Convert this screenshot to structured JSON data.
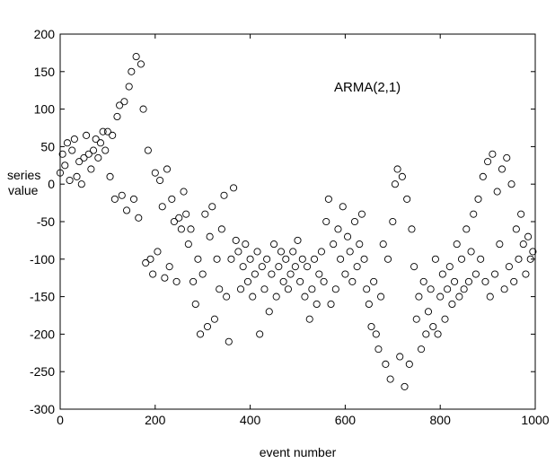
{
  "chart_data": {
    "type": "scatter",
    "title": "",
    "annotation": "ARMA(2,1)",
    "xlabel": "event number",
    "ylabel_lines": [
      "series",
      "value"
    ],
    "xlim": [
      0,
      1000
    ],
    "ylim": [
      -300,
      200
    ],
    "xticks": [
      0,
      200,
      400,
      600,
      800,
      1000
    ],
    "yticks": [
      -300,
      -250,
      -200,
      -150,
      -100,
      -50,
      0,
      50,
      100,
      150,
      200
    ],
    "grid": false,
    "marker": "open-circle",
    "series": [
      {
        "values": [
          [
            0,
            15
          ],
          [
            5,
            40
          ],
          [
            10,
            25
          ],
          [
            15,
            55
          ],
          [
            20,
            5
          ],
          [
            25,
            45
          ],
          [
            30,
            60
          ],
          [
            35,
            10
          ],
          [
            40,
            30
          ],
          [
            45,
            0
          ],
          [
            50,
            35
          ],
          [
            55,
            65
          ],
          [
            60,
            40
          ],
          [
            65,
            20
          ],
          [
            70,
            45
          ],
          [
            75,
            60
          ],
          [
            80,
            35
          ],
          [
            85,
            55
          ],
          [
            90,
            70
          ],
          [
            95,
            45
          ],
          [
            100,
            70
          ],
          [
            105,
            10
          ],
          [
            110,
            65
          ],
          [
            115,
            -20
          ],
          [
            120,
            90
          ],
          [
            125,
            105
          ],
          [
            130,
            -15
          ],
          [
            135,
            110
          ],
          [
            140,
            -35
          ],
          [
            145,
            130
          ],
          [
            150,
            150
          ],
          [
            155,
            -20
          ],
          [
            160,
            170
          ],
          [
            165,
            -45
          ],
          [
            170,
            160
          ],
          [
            175,
            100
          ],
          [
            180,
            -105
          ],
          [
            185,
            45
          ],
          [
            190,
            -100
          ],
          [
            195,
            -120
          ],
          [
            200,
            15
          ],
          [
            205,
            -90
          ],
          [
            210,
            5
          ],
          [
            215,
            -30
          ],
          [
            220,
            -125
          ],
          [
            225,
            20
          ],
          [
            230,
            -110
          ],
          [
            235,
            -20
          ],
          [
            240,
            -50
          ],
          [
            245,
            -130
          ],
          [
            250,
            -45
          ],
          [
            255,
            -60
          ],
          [
            260,
            -10
          ],
          [
            265,
            -40
          ],
          [
            270,
            -80
          ],
          [
            275,
            -60
          ],
          [
            280,
            -130
          ],
          [
            285,
            -160
          ],
          [
            290,
            -100
          ],
          [
            295,
            -200
          ],
          [
            300,
            -120
          ],
          [
            305,
            -40
          ],
          [
            310,
            -190
          ],
          [
            315,
            -70
          ],
          [
            320,
            -30
          ],
          [
            325,
            -180
          ],
          [
            330,
            -100
          ],
          [
            335,
            -140
          ],
          [
            340,
            -60
          ],
          [
            345,
            -15
          ],
          [
            350,
            -150
          ],
          [
            355,
            -210
          ],
          [
            360,
            -100
          ],
          [
            365,
            -5
          ],
          [
            370,
            -75
          ],
          [
            375,
            -90
          ],
          [
            380,
            -140
          ],
          [
            385,
            -110
          ],
          [
            390,
            -80
          ],
          [
            395,
            -130
          ],
          [
            400,
            -100
          ],
          [
            405,
            -150
          ],
          [
            410,
            -120
          ],
          [
            415,
            -90
          ],
          [
            420,
            -200
          ],
          [
            425,
            -110
          ],
          [
            430,
            -140
          ],
          [
            435,
            -100
          ],
          [
            440,
            -170
          ],
          [
            445,
            -120
          ],
          [
            450,
            -80
          ],
          [
            455,
            -150
          ],
          [
            460,
            -110
          ],
          [
            465,
            -90
          ],
          [
            470,
            -130
          ],
          [
            475,
            -100
          ],
          [
            480,
            -140
          ],
          [
            485,
            -120
          ],
          [
            490,
            -90
          ],
          [
            495,
            -110
          ],
          [
            500,
            -75
          ],
          [
            505,
            -130
          ],
          [
            510,
            -100
          ],
          [
            515,
            -150
          ],
          [
            520,
            -110
          ],
          [
            525,
            -180
          ],
          [
            530,
            -140
          ],
          [
            535,
            -100
          ],
          [
            540,
            -160
          ],
          [
            545,
            -120
          ],
          [
            550,
            -90
          ],
          [
            555,
            -130
          ],
          [
            560,
            -50
          ],
          [
            565,
            -20
          ],
          [
            570,
            -160
          ],
          [
            575,
            -80
          ],
          [
            580,
            -140
          ],
          [
            585,
            -60
          ],
          [
            590,
            -100
          ],
          [
            595,
            -30
          ],
          [
            600,
            -120
          ],
          [
            605,
            -70
          ],
          [
            610,
            -90
          ],
          [
            615,
            -130
          ],
          [
            620,
            -50
          ],
          [
            625,
            -110
          ],
          [
            630,
            -80
          ],
          [
            635,
            -40
          ],
          [
            640,
            -100
          ],
          [
            645,
            -140
          ],
          [
            650,
            -160
          ],
          [
            655,
            -190
          ],
          [
            660,
            -130
          ],
          [
            665,
            -200
          ],
          [
            670,
            -220
          ],
          [
            675,
            -150
          ],
          [
            680,
            -80
          ],
          [
            685,
            -240
          ],
          [
            690,
            -100
          ],
          [
            695,
            -260
          ],
          [
            700,
            -50
          ],
          [
            705,
            0
          ],
          [
            710,
            20
          ],
          [
            715,
            -230
          ],
          [
            720,
            10
          ],
          [
            725,
            -270
          ],
          [
            730,
            -20
          ],
          [
            735,
            -240
          ],
          [
            740,
            -60
          ],
          [
            745,
            -110
          ],
          [
            750,
            -180
          ],
          [
            755,
            -150
          ],
          [
            760,
            -220
          ],
          [
            765,
            -130
          ],
          [
            770,
            -200
          ],
          [
            775,
            -170
          ],
          [
            780,
            -140
          ],
          [
            785,
            -190
          ],
          [
            790,
            -100
          ],
          [
            795,
            -200
          ],
          [
            800,
            -150
          ],
          [
            805,
            -120
          ],
          [
            810,
            -180
          ],
          [
            815,
            -140
          ],
          [
            820,
            -110
          ],
          [
            825,
            -160
          ],
          [
            830,
            -130
          ],
          [
            835,
            -80
          ],
          [
            840,
            -150
          ],
          [
            845,
            -100
          ],
          [
            850,
            -140
          ],
          [
            855,
            -60
          ],
          [
            860,
            -130
          ],
          [
            865,
            -90
          ],
          [
            870,
            -40
          ],
          [
            875,
            -120
          ],
          [
            880,
            -20
          ],
          [
            885,
            -100
          ],
          [
            890,
            10
          ],
          [
            895,
            -130
          ],
          [
            900,
            30
          ],
          [
            905,
            -150
          ],
          [
            910,
            40
          ],
          [
            915,
            -120
          ],
          [
            920,
            -10
          ],
          [
            925,
            -80
          ],
          [
            930,
            20
          ],
          [
            935,
            -140
          ],
          [
            940,
            35
          ],
          [
            945,
            -110
          ],
          [
            950,
            0
          ],
          [
            955,
            -130
          ],
          [
            960,
            -60
          ],
          [
            965,
            -100
          ],
          [
            970,
            -40
          ],
          [
            975,
            -80
          ],
          [
            980,
            -120
          ],
          [
            985,
            -70
          ],
          [
            990,
            -100
          ],
          [
            995,
            -90
          ]
        ]
      }
    ]
  }
}
